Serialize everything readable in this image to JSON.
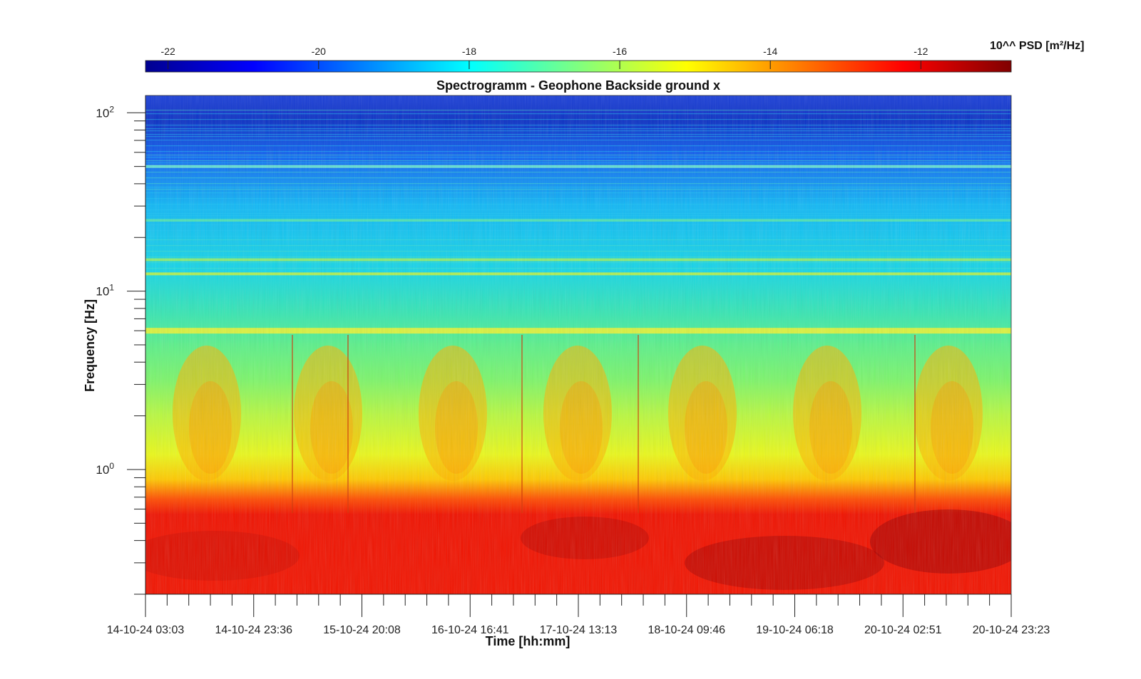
{
  "chart_data": {
    "type": "heatmap",
    "title": "Spectrogramm - Geophone Backside ground x",
    "xlabel": "Time [hh:mm]",
    "ylabel": "Frequency [Hz]",
    "x_tick_labels": [
      "14-10-24 03:03",
      "14-10-24 23:36",
      "15-10-24 20:08",
      "16-10-24 16:41",
      "17-10-24 13:13",
      "18-10-24 09:46",
      "19-10-24 06:18",
      "20-10-24 02:51",
      "20-10-24 23:23"
    ],
    "y_scale": "log",
    "ylim": [
      0.2,
      125
    ],
    "y_tick_labels": [
      {
        "base": "10",
        "exp": "0",
        "value": 1
      },
      {
        "base": "10",
        "exp": "1",
        "value": 10
      },
      {
        "base": "10",
        "exp": "2",
        "value": 100
      }
    ],
    "colorbar": {
      "label": "10^^ PSD [m²/Hz]",
      "ticks": [
        -22,
        -20,
        -18,
        -16,
        -14,
        -12
      ],
      "range": [
        -22.3,
        -10.8
      ],
      "colormap": "jet"
    },
    "description": {
      "high_freq_level_log10_psd": -21,
      "mid_freq_level_log10_psd": -18,
      "low_freq_level_log10_psd": -12,
      "spectral_lines_hz": [
        6,
        12.5,
        15,
        25,
        50
      ],
      "daily_activity_bursts": 7
    }
  }
}
